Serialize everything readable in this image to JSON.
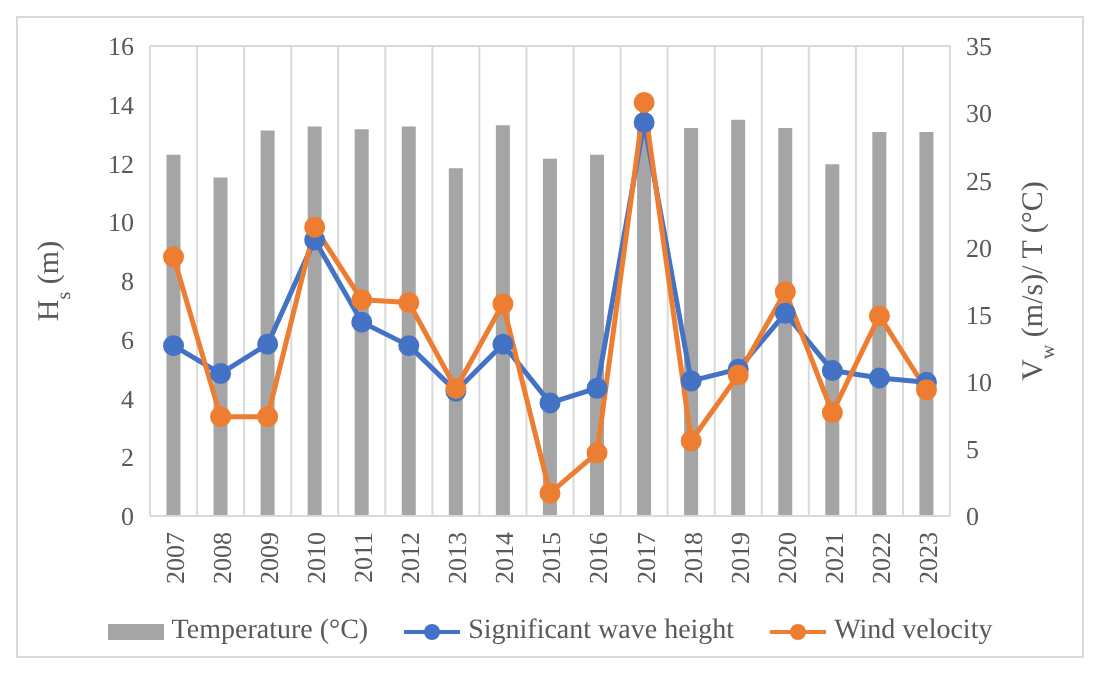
{
  "chart_data": {
    "type": "bar",
    "categories": [
      "2007",
      "2008",
      "2009",
      "2010",
      "2011",
      "2012",
      "2013",
      "2014",
      "2015",
      "2016",
      "2017",
      "2018",
      "2019",
      "2020",
      "2021",
      "2022",
      "2023"
    ],
    "series": [
      {
        "name": "Temperature (°C)",
        "axis": "y2",
        "color": "#a5a5a5",
        "values": [
          26.9,
          25.2,
          28.7,
          29.0,
          28.8,
          29.0,
          25.9,
          29.1,
          26.6,
          26.9,
          29.0,
          28.9,
          29.5,
          28.9,
          26.2,
          28.6,
          28.6
        ]
      },
      {
        "name": "Significant wave height",
        "type": "line",
        "color": "#4472c4",
        "values": [
          5.8,
          4.85,
          5.85,
          9.4,
          6.6,
          5.8,
          4.25,
          5.85,
          3.85,
          4.35,
          13.4,
          4.6,
          5.0,
          6.9,
          4.95,
          4.7,
          4.55
        ]
      },
      {
        "name": "Wind velocity",
        "type": "line",
        "axis": "y2",
        "color": "#ed7d31",
        "values": [
          19.3,
          7.4,
          7.4,
          21.5,
          16.1,
          15.9,
          9.5,
          15.8,
          1.7,
          4.7,
          30.8,
          5.6,
          10.5,
          16.7,
          7.7,
          14.9,
          9.4
        ]
      }
    ],
    "ylabel": "H$_{s}$ (m)",
    "y2label": "V$_{w}$ (m/s)/ T (°C)",
    "ylim": [
      0,
      16
    ],
    "yticks": [
      0,
      2,
      4,
      6,
      8,
      10,
      12,
      14,
      16
    ],
    "y2lim": [
      0,
      35
    ],
    "y2ticks": [
      0,
      5,
      10,
      15,
      20,
      25,
      30,
      35
    ],
    "grid": true,
    "legend": "bottom",
    "marker": "circle",
    "line_style": "solid"
  }
}
